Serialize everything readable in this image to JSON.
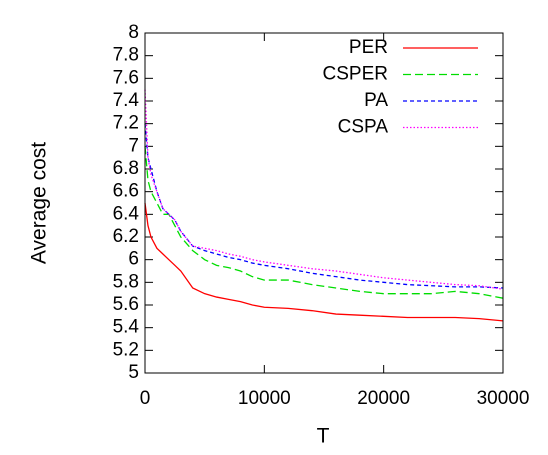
{
  "chart_data": {
    "type": "line",
    "xlabel": "T",
    "ylabel": "Average cost",
    "x": [
      0,
      250,
      500,
      1000,
      1500,
      2000,
      2500,
      3000,
      4000,
      5000,
      6000,
      7000,
      8000,
      9000,
      10000,
      12000,
      14000,
      16000,
      18000,
      20000,
      22000,
      24000,
      26000,
      28000,
      30000
    ],
    "series": [
      {
        "name": "PER",
        "color": "#ff0000",
        "dash": "solid",
        "values": [
          6.5,
          6.3,
          6.2,
          6.1,
          6.05,
          6.0,
          5.95,
          5.9,
          5.75,
          5.7,
          5.67,
          5.65,
          5.63,
          5.6,
          5.58,
          5.57,
          5.55,
          5.52,
          5.51,
          5.5,
          5.49,
          5.49,
          5.49,
          5.48,
          5.46
        ]
      },
      {
        "name": "CSPER",
        "color": "#00dd00",
        "dash": "dashed",
        "values": [
          7.0,
          6.7,
          6.6,
          6.5,
          6.4,
          6.4,
          6.3,
          6.2,
          6.08,
          6.0,
          5.95,
          5.93,
          5.9,
          5.85,
          5.82,
          5.82,
          5.78,
          5.75,
          5.72,
          5.7,
          5.7,
          5.7,
          5.72,
          5.7,
          5.66
        ]
      },
      {
        "name": "PA",
        "color": "#0000ff",
        "dash": "short-dashed",
        "values": [
          7.2,
          6.9,
          6.8,
          6.6,
          6.45,
          6.4,
          6.35,
          6.25,
          6.12,
          6.08,
          6.05,
          6.02,
          6.0,
          5.97,
          5.95,
          5.92,
          5.88,
          5.85,
          5.82,
          5.8,
          5.78,
          5.77,
          5.76,
          5.76,
          5.75
        ]
      },
      {
        "name": "CSPA",
        "color": "#ff00ff",
        "dash": "dotted",
        "values": [
          7.5,
          6.9,
          6.75,
          6.6,
          6.45,
          6.4,
          6.35,
          6.25,
          6.12,
          6.1,
          6.08,
          6.05,
          6.03,
          6.0,
          5.98,
          5.95,
          5.92,
          5.9,
          5.87,
          5.84,
          5.82,
          5.8,
          5.78,
          5.77,
          5.74
        ]
      }
    ],
    "xlim": [
      0,
      30000
    ],
    "xticks": [
      0,
      10000,
      20000,
      30000
    ],
    "ylim": [
      5,
      8
    ],
    "yticks": [
      5,
      5.2,
      5.4,
      5.6,
      5.8,
      6,
      6.2,
      6.4,
      6.6,
      6.8,
      7,
      7.2,
      7.4,
      7.6,
      7.8,
      8
    ],
    "grid": false,
    "legend": "top-right"
  }
}
